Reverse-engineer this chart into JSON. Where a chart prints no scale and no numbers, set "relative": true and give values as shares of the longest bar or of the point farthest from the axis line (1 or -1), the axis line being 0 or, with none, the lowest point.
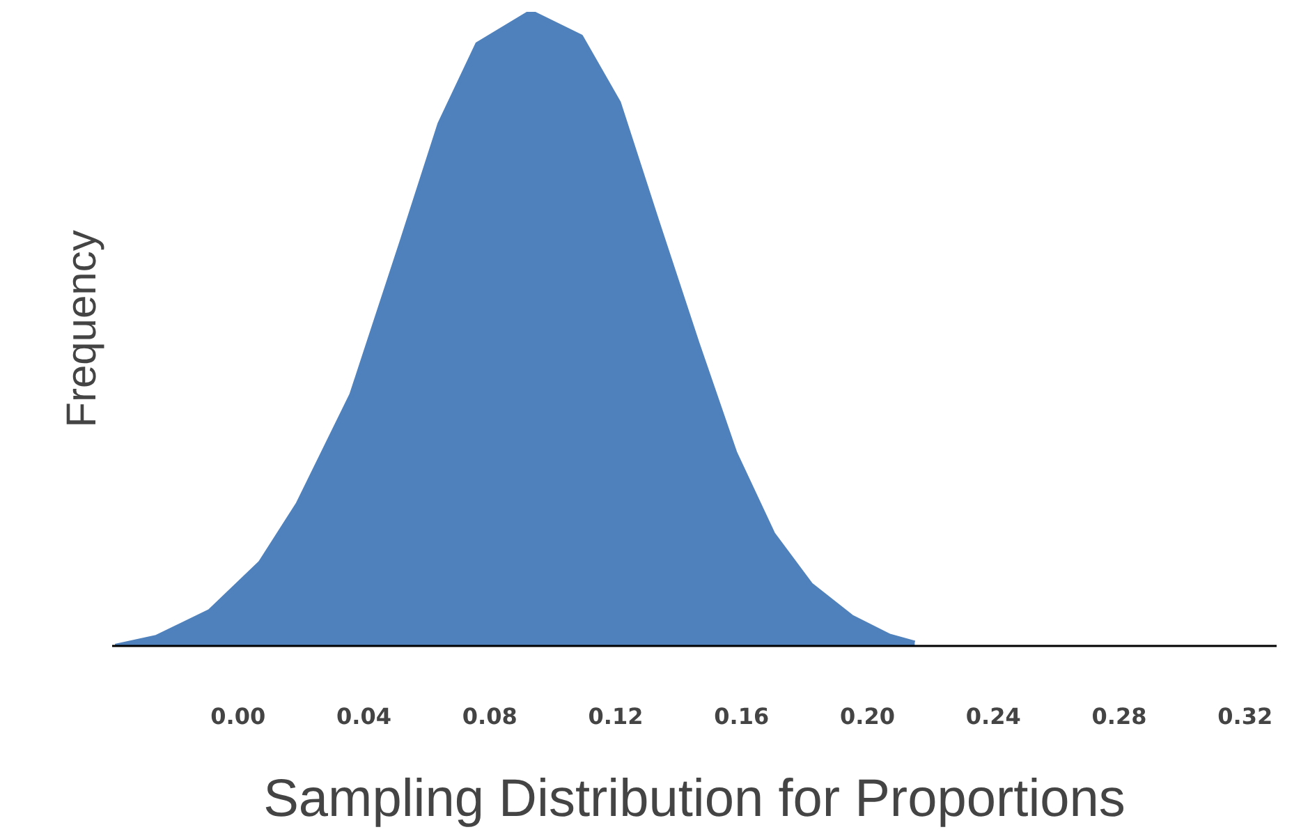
{
  "chart_data": {
    "type": "area",
    "xlabel": "Sampling Distribution for Proportions",
    "ylabel": "Frequency",
    "relative": true,
    "color": "#4f81bd",
    "x": [
      -0.039,
      -0.026,
      -0.009,
      0.007,
      0.019,
      0.036,
      0.052,
      0.064,
      0.076,
      0.093,
      0.109,
      0.121,
      0.133,
      0.146,
      0.158,
      0.17,
      0.182,
      0.195,
      0.207,
      0.215
    ],
    "values": [
      0,
      0.014,
      0.055,
      0.131,
      0.224,
      0.396,
      0.638,
      0.823,
      0.949,
      1,
      0.961,
      0.857,
      0.673,
      0.477,
      0.304,
      0.177,
      0.097,
      0.046,
      0.016,
      0.005
    ],
    "xlim": [
      -0.04,
      0.33
    ],
    "xticks": [
      {
        "value": 0,
        "label": "0.00"
      },
      {
        "value": 0.04,
        "label": "0.04"
      },
      {
        "value": 0.08,
        "label": "0.08"
      },
      {
        "value": 0.12,
        "label": "0.12"
      },
      {
        "value": 0.16,
        "label": "0.16"
      },
      {
        "value": 0.2,
        "label": "0.20"
      },
      {
        "value": 0.24,
        "label": "0.24"
      },
      {
        "value": 0.28,
        "label": "0.28"
      },
      {
        "value": 0.32,
        "label": "0.32"
      }
    ],
    "grid": false
  }
}
